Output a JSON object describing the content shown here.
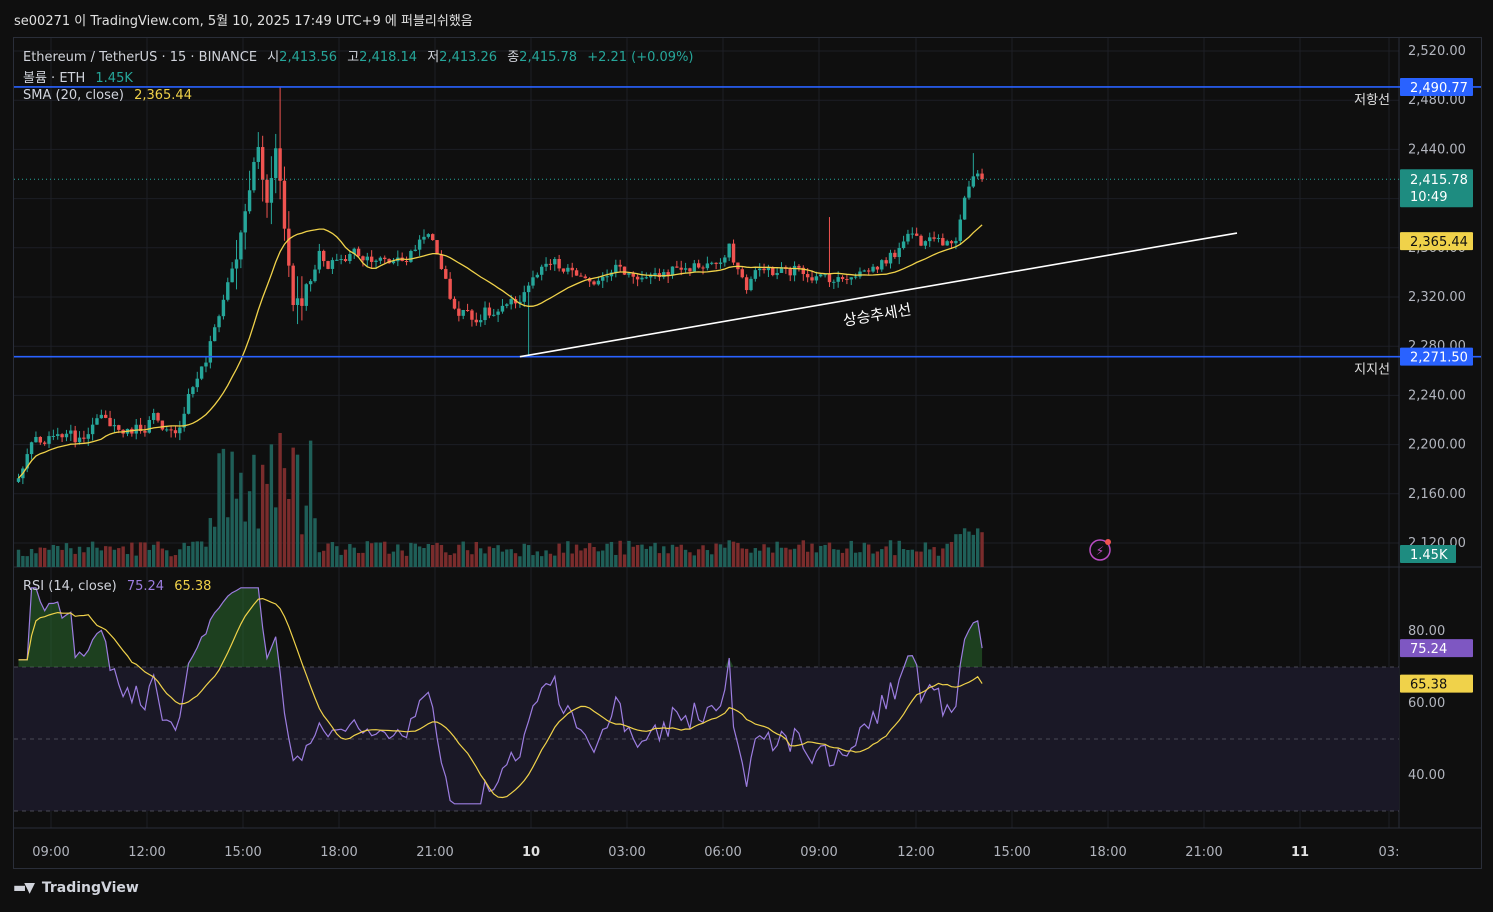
{
  "window": {
    "caption": "se00271 이 TradingView.com, 5월 10, 2025 17:49 UTC+9 에 퍼블리쉬했음"
  },
  "legend": {
    "symbol": "Ethereum / TetherUS · 15 · BINANCE",
    "o_label": "시",
    "o": "2,413.56",
    "h_label": "고",
    "h": "2,418.14",
    "l_label": "저",
    "l": "2,413.26",
    "c_label": "종",
    "c": "2,415.78",
    "change": "+2.21 (+0.09%)",
    "volume_label": "볼륨 · ETH",
    "volume": "1.45K",
    "sma_label": "SMA (20, close)",
    "sma": "2,365.44",
    "rsi_label": "RSI (14, close)",
    "rsi": "75.24",
    "rsi_ma": "65.38"
  },
  "footer": {
    "brand": "TradingView"
  },
  "colors": {
    "up": "#26a69a",
    "down": "#ef5350",
    "sma": "#f0d24a",
    "rsi": "#9c7de0",
    "hline": "#2962ff",
    "bg": "#0f0f0f",
    "grid": "#1d1f26"
  },
  "chart_data": [
    {
      "type": "candlestick",
      "symbol": "ETH/USDT",
      "timeframe": "15",
      "y_ticks": [
        "2,120.00",
        "2,160.00",
        "2,200.00",
        "2,240.00",
        "2,280.00",
        "2,320.00",
        "2,360.00",
        "2,400.00",
        "2,440.00",
        "2,480.00",
        "2,520.00"
      ],
      "ylim": [
        2110,
        2535
      ],
      "x_ticks": [
        "09:00",
        "12:00",
        "15:00",
        "18:00",
        "21:00",
        "10",
        "03:00",
        "06:00",
        "09:00",
        "12:00",
        "15:00",
        "18:00",
        "21:00",
        "11",
        "03:"
      ],
      "anchors": [
        [
          0,
          2172
        ],
        [
          2,
          2192
        ],
        [
          4,
          2205
        ],
        [
          6,
          2198
        ],
        [
          8,
          2210
        ],
        [
          9,
          2205
        ],
        [
          11,
          2211
        ],
        [
          13,
          2205
        ],
        [
          15,
          2208
        ],
        [
          17,
          2215
        ],
        [
          19,
          2222
        ],
        [
          21,
          2218
        ],
        [
          23,
          2212
        ],
        [
          25,
          2210
        ],
        [
          27,
          2214
        ],
        [
          29,
          2213
        ],
        [
          31,
          2224
        ],
        [
          33,
          2210
        ],
        [
          35,
          2210
        ],
        [
          37,
          2215
        ],
        [
          39,
          2240
        ],
        [
          41,
          2255
        ],
        [
          43,
          2268
        ],
        [
          45,
          2295
        ],
        [
          47,
          2318
        ],
        [
          49,
          2345
        ],
        [
          51,
          2365
        ],
        [
          53,
          2410
        ],
        [
          55,
          2440
        ],
        [
          57,
          2395
        ],
        [
          59,
          2450
        ],
        [
          61,
          2375
        ],
        [
          63,
          2318
        ],
        [
          65,
          2322
        ],
        [
          67,
          2335
        ],
        [
          69,
          2355
        ],
        [
          71,
          2342
        ],
        [
          73,
          2352
        ],
        [
          75,
          2350
        ],
        [
          77,
          2358
        ],
        [
          79,
          2352
        ],
        [
          81,
          2352
        ],
        [
          83,
          2350
        ],
        [
          85,
          2348
        ],
        [
          87,
          2352
        ],
        [
          89,
          2350
        ],
        [
          91,
          2360
        ],
        [
          93,
          2372
        ],
        [
          95,
          2365
        ],
        [
          97,
          2345
        ],
        [
          99,
          2320
        ],
        [
          101,
          2305
        ],
        [
          103,
          2310
        ],
        [
          105,
          2300
        ],
        [
          107,
          2308
        ],
        [
          109,
          2305
        ],
        [
          111,
          2310
        ],
        [
          113,
          2315
        ],
        [
          115,
          2318
        ],
        [
          117,
          2330
        ],
        [
          119,
          2338
        ],
        [
          121,
          2345
        ],
        [
          123,
          2348
        ],
        [
          125,
          2340
        ],
        [
          127,
          2342
        ],
        [
          129,
          2335
        ],
        [
          131,
          2330
        ],
        [
          133,
          2335
        ],
        [
          135,
          2340
        ],
        [
          137,
          2345
        ],
        [
          139,
          2340
        ],
        [
          141,
          2338
        ],
        [
          143,
          2335
        ],
        [
          145,
          2335
        ],
        [
          147,
          2338
        ],
        [
          149,
          2340
        ],
        [
          151,
          2345
        ],
        [
          153,
          2342
        ],
        [
          155,
          2345
        ],
        [
          157,
          2345
        ],
        [
          159,
          2348
        ],
        [
          161,
          2345
        ],
        [
          163,
          2360
        ],
        [
          165,
          2342
        ],
        [
          167,
          2328
        ],
        [
          169,
          2340
        ],
        [
          171,
          2345
        ],
        [
          173,
          2338
        ],
        [
          175,
          2342
        ],
        [
          177,
          2340
        ],
        [
          179,
          2345
        ],
        [
          181,
          2338
        ],
        [
          183,
          2335
        ],
        [
          185,
          2338
        ],
        [
          187,
          2333
        ],
        [
          189,
          2335
        ],
        [
          191,
          2338
        ],
        [
          193,
          2340
        ],
        [
          195,
          2342
        ],
        [
          197,
          2345
        ],
        [
          199,
          2350
        ],
        [
          201,
          2355
        ],
        [
          203,
          2368
        ],
        [
          205,
          2372
        ],
        [
          207,
          2365
        ],
        [
          209,
          2372
        ],
        [
          211,
          2368
        ],
        [
          213,
          2362
        ],
        [
          215,
          2368
        ],
        [
          217,
          2402
        ],
        [
          219,
          2418
        ],
        [
          221,
          2416
        ]
      ],
      "last_price": "2,415.78",
      "countdown": "10:49",
      "horizontal_lines": [
        {
          "price": "2,490.77",
          "label": "저항선"
        },
        {
          "price": "2,271.50",
          "label": "지지선"
        }
      ],
      "trendline": {
        "label": "상승추세선",
        "start": [
          "10 00:00",
          2271.5
        ],
        "end": [
          "10 ~22:30",
          2372
        ]
      },
      "sma": {
        "name": "SMA (20, close)",
        "last": "2,365.44"
      },
      "volume": {
        "last": "1.45K"
      }
    },
    {
      "type": "line",
      "name": "RSI (14, close)",
      "y_ticks": [
        "40.00",
        "60.00",
        "80.00"
      ],
      "ylim": [
        30,
        93
      ],
      "bands": [
        50,
        70,
        30
      ],
      "last_rsi": "75.24",
      "last_rsi_ma": "65.38"
    }
  ]
}
